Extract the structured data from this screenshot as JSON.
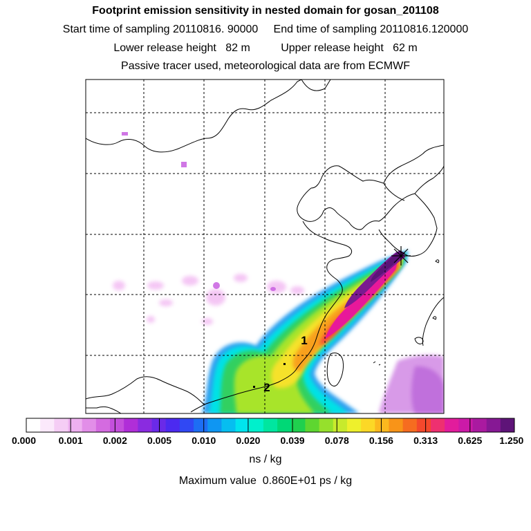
{
  "title": {
    "line1": "Footprint emission sensitivity in nested domain for gosan_201108",
    "line2": "Start time of sampling 20110816. 90000     End time of sampling 20110816.120000",
    "line3": "Lower release height   82 m          Upper release height   62 m",
    "line4": "Passive tracer used, meteorological data are from ECMWF"
  },
  "markers": [
    {
      "label": "1"
    },
    {
      "label": "2"
    }
  ],
  "colorbar": {
    "colors": [
      "#ffffff",
      "#fbe9fb",
      "#f5cdf5",
      "#eeb0f0",
      "#e28ee8",
      "#d46be0",
      "#c44fdc",
      "#b02ed8",
      "#8a2be0",
      "#6a2ae8",
      "#4c2af0",
      "#3048f4",
      "#1d6ef4",
      "#0f96f2",
      "#06bef0",
      "#00e4ee",
      "#00f0cc",
      "#00e6a0",
      "#00d876",
      "#20d04e",
      "#5ed630",
      "#96e02c",
      "#c8ea2c",
      "#eef02c",
      "#fcd826",
      "#fcb81e",
      "#f89418",
      "#f66c20",
      "#f4482c",
      "#ee3070",
      "#e21c9c",
      "#cc1aa8",
      "#aa1aa0",
      "#861894",
      "#5e1478"
    ],
    "tick_labels": [
      "0.000",
      "0.001",
      "0.002",
      "0.005",
      "0.010",
      "0.020",
      "0.039",
      "0.078",
      "0.156",
      "0.313",
      "0.625",
      "1.250"
    ]
  },
  "units": "ns / kg",
  "max_value": "Maximum value  0.860E+01 ps / kg"
}
